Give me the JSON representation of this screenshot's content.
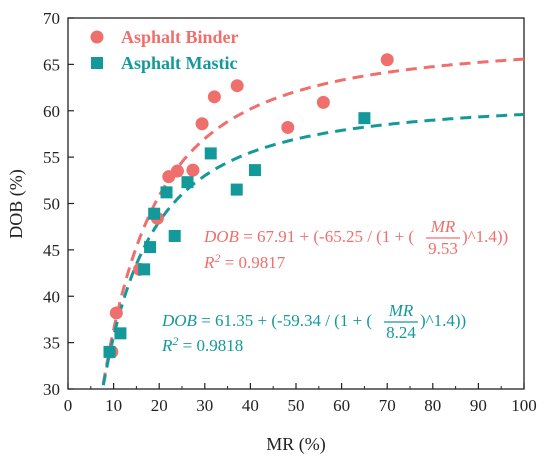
{
  "chart_data": {
    "type": "scatter",
    "xlabel": "MR (%)",
    "ylabel": "DOB (%)",
    "xlim": [
      0,
      100
    ],
    "ylim": [
      30,
      70
    ],
    "xticks": [
      0,
      10,
      20,
      30,
      40,
      50,
      60,
      70,
      80,
      90,
      100
    ],
    "yticks": [
      30,
      35,
      40,
      45,
      50,
      55,
      60,
      65,
      70
    ],
    "grid": false,
    "legend_position": "top-left",
    "series": [
      {
        "name": "Asphalt Binder",
        "marker": "circle",
        "color": "#EF6F6C",
        "points": [
          {
            "x": 9.6,
            "y": 34.0
          },
          {
            "x": 10.6,
            "y": 38.2
          },
          {
            "x": 15.7,
            "y": 42.9
          },
          {
            "x": 19.6,
            "y": 48.4
          },
          {
            "x": 22.1,
            "y": 52.9
          },
          {
            "x": 24.0,
            "y": 53.5
          },
          {
            "x": 27.4,
            "y": 53.6
          },
          {
            "x": 29.4,
            "y": 58.6
          },
          {
            "x": 32.1,
            "y": 61.5
          },
          {
            "x": 37.1,
            "y": 62.7
          },
          {
            "x": 48.2,
            "y": 58.2
          },
          {
            "x": 56.0,
            "y": 60.9
          },
          {
            "x": 70.0,
            "y": 65.5
          }
        ],
        "fit": {
          "a": 67.91,
          "b": -65.25,
          "x0": 9.53,
          "p": 1.4
        }
      },
      {
        "name": "Asphalt Mastic",
        "marker": "square",
        "color": "#14999A",
        "points": [
          {
            "x": 9.1,
            "y": 34.0
          },
          {
            "x": 11.5,
            "y": 36.0
          },
          {
            "x": 16.7,
            "y": 42.9
          },
          {
            "x": 18.0,
            "y": 45.3
          },
          {
            "x": 18.9,
            "y": 48.9
          },
          {
            "x": 21.6,
            "y": 51.2
          },
          {
            "x": 23.4,
            "y": 46.5
          },
          {
            "x": 26.2,
            "y": 52.3
          },
          {
            "x": 31.3,
            "y": 55.4
          },
          {
            "x": 37.0,
            "y": 51.5
          },
          {
            "x": 41.0,
            "y": 53.6
          },
          {
            "x": 65.0,
            "y": 59.2
          }
        ],
        "fit": {
          "a": 61.35,
          "b": -59.34,
          "x0": 8.24,
          "p": 1.4
        }
      }
    ],
    "annotations": [
      {
        "series": "Asphalt Binder",
        "equation": {
          "lhs": "DOB",
          "eq1": " = 67.91 + (-65.25 / (1 + (",
          "num": "MR",
          "den": "9.53",
          "eq2": ")^1.4))"
        },
        "r2_label": "R",
        "r2_sup": "2",
        "r2_value": " = 0.9817"
      },
      {
        "series": "Asphalt Mastic",
        "equation": {
          "lhs": "DOB",
          "eq1": " = 61.35 + (-59.34 / (1 + (",
          "num": "MR",
          "den": "8.24",
          "eq2": ")^1.4))"
        },
        "r2_label": "R",
        "r2_sup": "2",
        "r2_value": " = 0.9818"
      }
    ]
  }
}
